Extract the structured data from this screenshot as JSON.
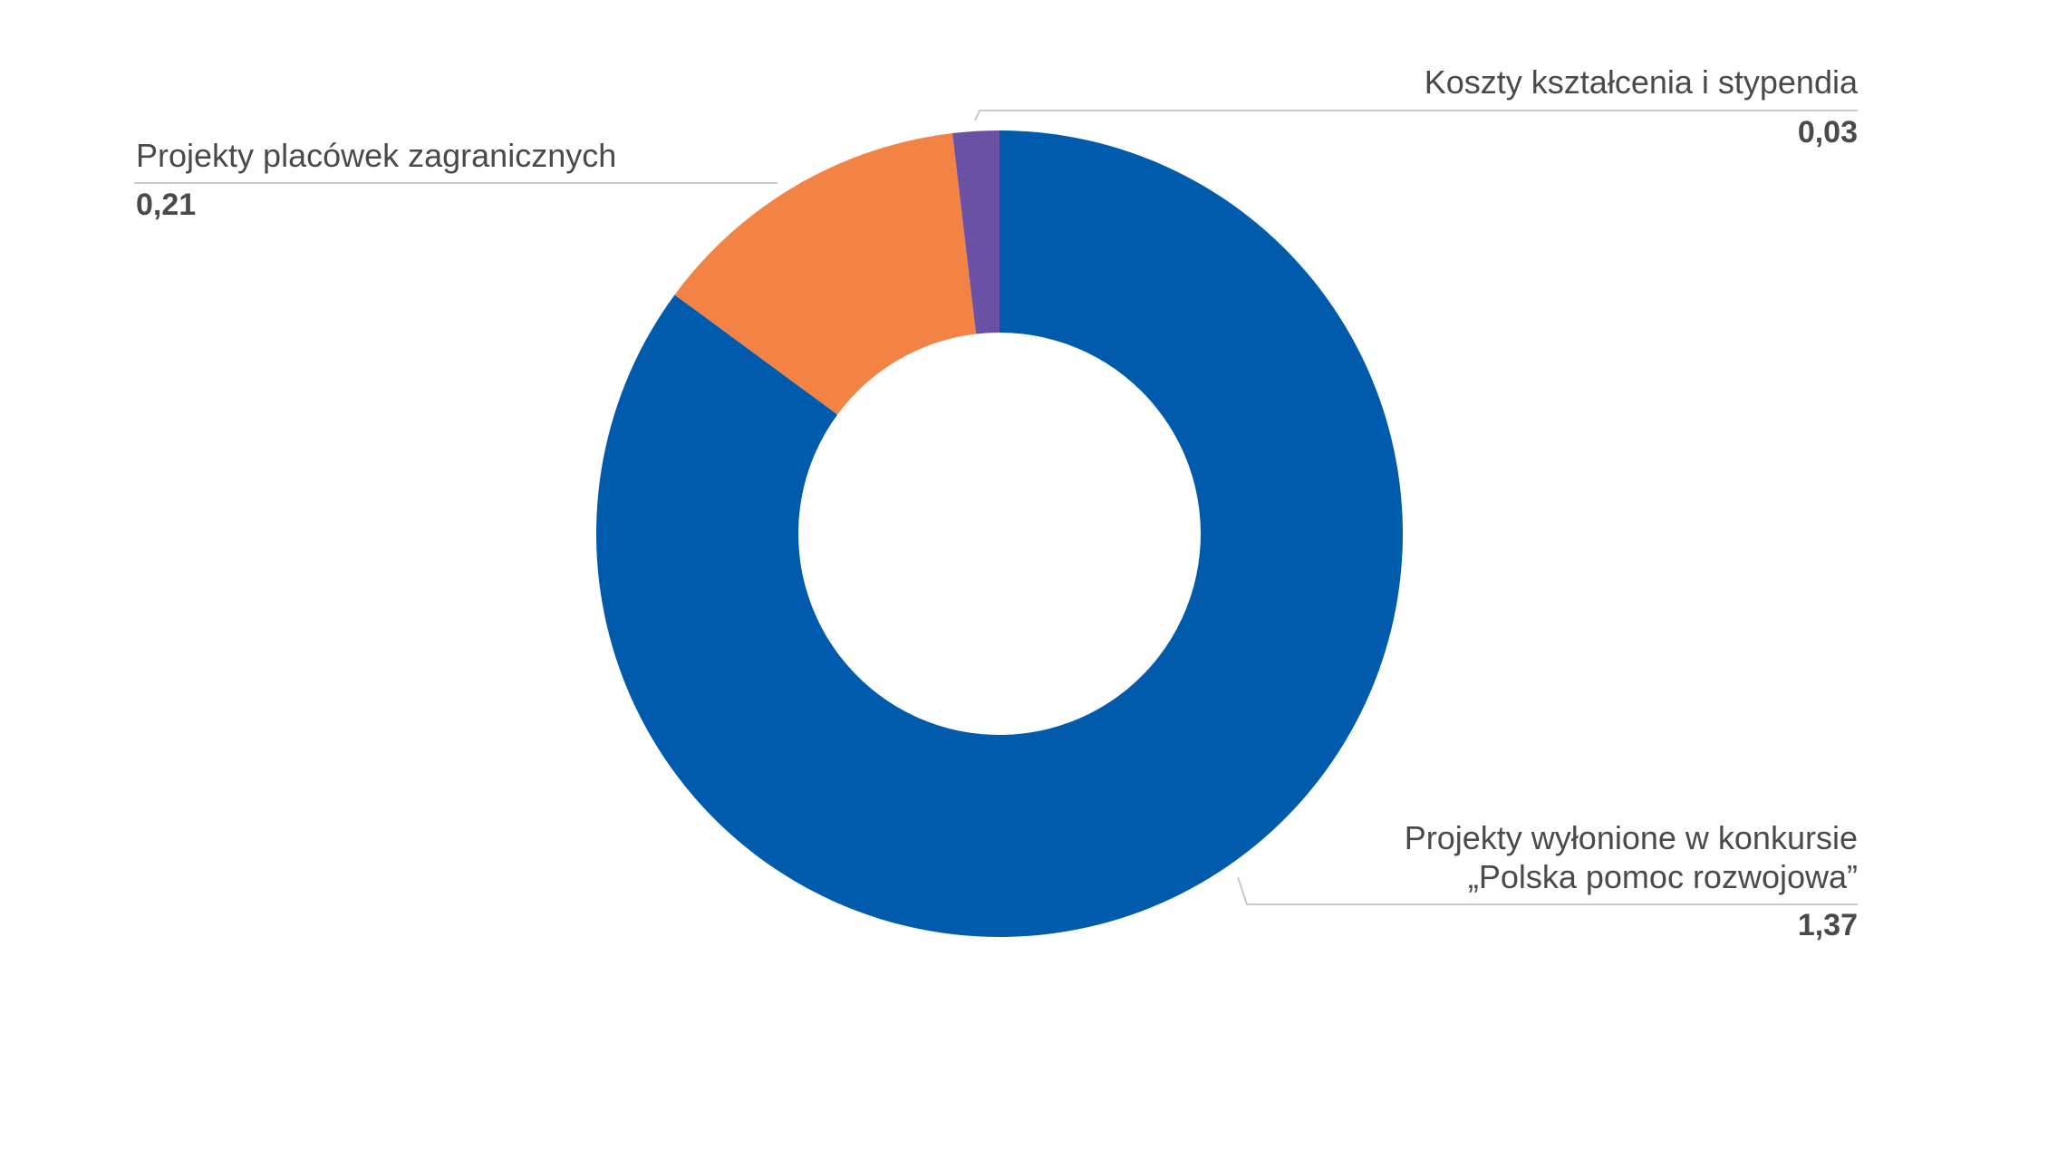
{
  "chart_data": {
    "type": "pie",
    "variant": "donut",
    "start": "top",
    "direction": "clockwise",
    "slices": [
      {
        "label_lines": [
          "Projekty wyłonione w konkursie",
          "„Polska pomoc rozwojowa”"
        ],
        "value": 1.37,
        "value_label": "1,37",
        "color": "#005BAC"
      },
      {
        "label_lines": [
          "Projekty placówek zagranicznych"
        ],
        "value": 0.21,
        "value_label": "0,21",
        "color": "#F28345"
      },
      {
        "label_lines": [
          "Koszty kształcenia i stypendia"
        ],
        "value": 0.03,
        "value_label": "0,03",
        "color": "#6A51A3"
      }
    ],
    "legend": "none",
    "data_labels": "outside with leader lines"
  }
}
